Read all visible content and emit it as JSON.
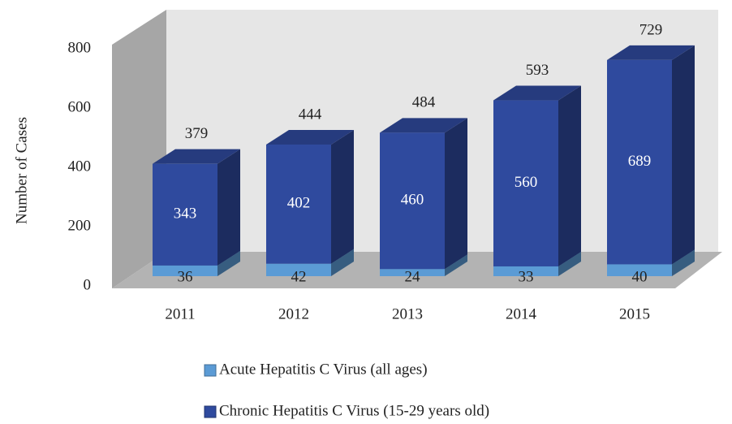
{
  "chart_data": {
    "type": "bar3d_stacked",
    "y_label": "Number of Cases",
    "categories": [
      "2011",
      "2012",
      "2013",
      "2014",
      "2015"
    ],
    "series": [
      {
        "name": "Acute Hepatitis C Virus (all ages)",
        "color": "#5b9bd5",
        "values": [
          36,
          42,
          24,
          33,
          40
        ]
      },
      {
        "name": "Chronic Hepatitis C Virus (15-29 years old)",
        "color": "#2f4a9e",
        "values": [
          343,
          402,
          460,
          560,
          689
        ]
      }
    ],
    "totals": [
      379,
      444,
      484,
      593,
      729
    ],
    "ylim": [
      0,
      800
    ],
    "yticks": [
      0,
      200,
      400,
      600,
      800
    ],
    "grid": false
  }
}
